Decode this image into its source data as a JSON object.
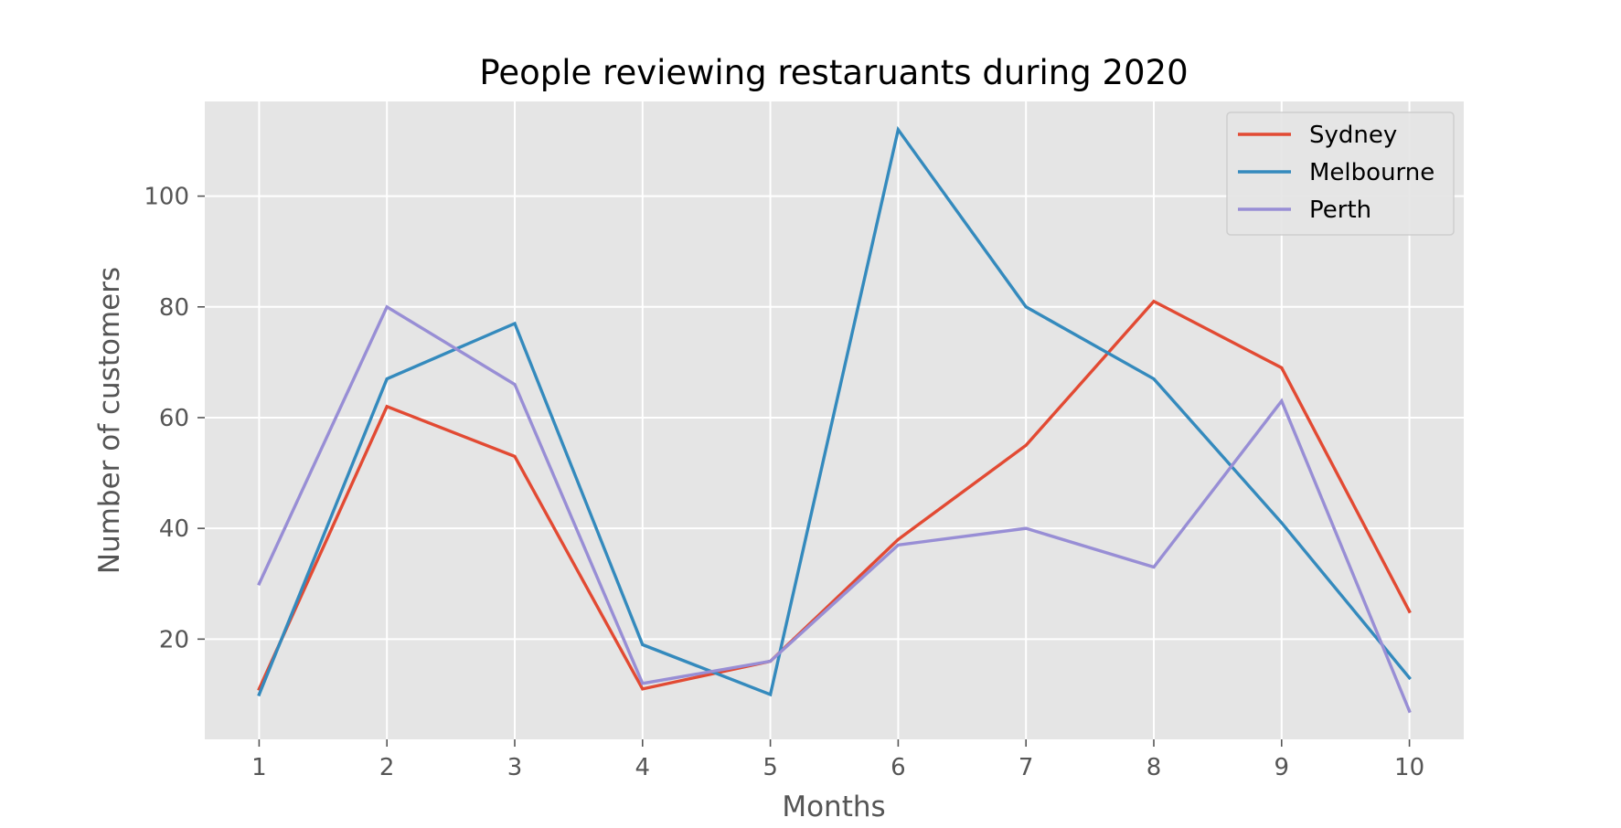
{
  "chart_data": {
    "type": "line",
    "title": "People reviewing restaruants during 2020",
    "xlabel": "Months",
    "ylabel": "Number of customers",
    "x": [
      1,
      2,
      3,
      4,
      5,
      6,
      7,
      8,
      9,
      10
    ],
    "x_ticks": [
      "1",
      "2",
      "3",
      "4",
      "5",
      "6",
      "7",
      "8",
      "9",
      "10"
    ],
    "y_ticks": [
      20,
      40,
      60,
      80,
      100
    ],
    "xlim": [
      0.575,
      10.425
    ],
    "ylim": [
      1.9,
      117.1
    ],
    "grid": true,
    "legend_position": "top-right",
    "background_color": "#e5e5e5",
    "grid_color": "#ffffff",
    "series": [
      {
        "name": "Sydney",
        "color": "#e24a33",
        "values": [
          11,
          62,
          53,
          11,
          16,
          38,
          55,
          81,
          69,
          25
        ]
      },
      {
        "name": "Melbourne",
        "color": "#348abd",
        "values": [
          10,
          67,
          77,
          19,
          10,
          112,
          80,
          67,
          41,
          13
        ]
      },
      {
        "name": "Perth",
        "color": "#988ed5",
        "values": [
          30,
          80,
          66,
          12,
          16,
          37,
          40,
          33,
          63,
          7
        ]
      }
    ]
  }
}
